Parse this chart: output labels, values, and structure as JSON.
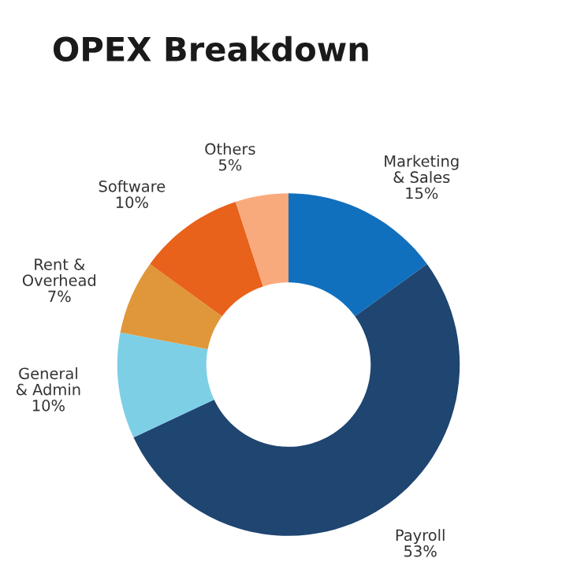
{
  "chart_data": {
    "type": "donut",
    "title": "OPEX Breakdown",
    "categories": [
      "Marketing\n& Sales",
      "Payroll",
      "General\n& Admin",
      "Rent &\nOverhead",
      "Software",
      "Others"
    ],
    "values": [
      15,
      53,
      10,
      7,
      10,
      5
    ],
    "value_labels": [
      "15%",
      "53%",
      "10%",
      "7%",
      "10%",
      "5%"
    ],
    "colors": [
      "#1170be",
      "#1f4571",
      "#7dcfe6",
      "#df973a",
      "#e8621b",
      "#f9aa7c"
    ]
  }
}
